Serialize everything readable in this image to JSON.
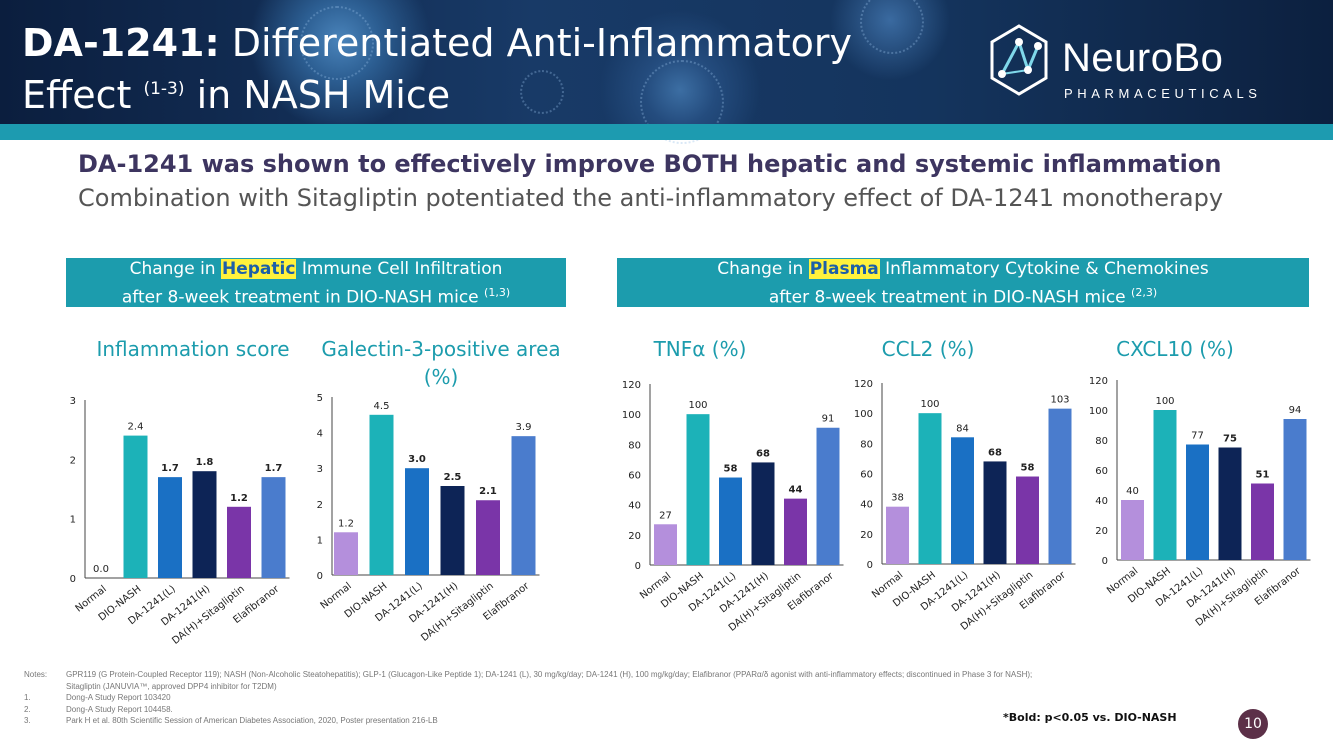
{
  "header": {
    "title_bold": "DA-1241:",
    "title_line1": " Differentiated Anti-Inflammatory",
    "title_line2a": "Effect ",
    "title_sup": "(1-3)",
    "title_line2b": " in NASH Mice",
    "logo_name": "NeuroBo",
    "logo_sub": "PHARMACEUTICALS",
    "logo_icon": "neural-network-icon"
  },
  "headline": "DA-1241 was shown to effectively improve BOTH hepatic and systemic inflammation",
  "subline": "Combination with Sitagliptin potentiated the anti-inflammatory effect of DA-1241 monotherapy",
  "hepatic_box": {
    "pre": "Change in ",
    "highlight": "Hepatic",
    "post": " Immune Cell Infiltration",
    "line2": "after 8-week treatment in DIO-NASH mice ",
    "sup": "(1,3)"
  },
  "plasma_box": {
    "pre": "Change in ",
    "highlight": "Plasma",
    "post": " Inflammatory Cytokine & Chemokines",
    "line2": "after 8-week treatment in DIO-NASH mice ",
    "sup": "(2,3)"
  },
  "colors": {
    "normal": "#b48fdc",
    "dio_nash": "#1cb2b8",
    "da1241_l": "#1a70c4",
    "da1241_h": "#0d2456",
    "combo": "#7a35a8",
    "elafibranor": "#4a7ccd"
  },
  "chart_data": [
    {
      "type": "bar",
      "title": "Inflammation score",
      "categories": [
        "Normal",
        "DIO-NASH",
        "DA-1241(L)",
        "DA-1241(H)",
        "DA(H)+Sitagliptin",
        "Elafibranor"
      ],
      "values": [
        0.0,
        2.4,
        1.7,
        1.8,
        1.2,
        1.7
      ],
      "labels": [
        "0.0",
        "2.4",
        "1.7",
        "1.8",
        "1.2",
        "1.7"
      ],
      "bold": [
        false,
        false,
        true,
        true,
        true,
        true
      ],
      "ylim": [
        0,
        3
      ],
      "yticks": [
        "0",
        "1",
        "2",
        "3"
      ],
      "xlabel": "",
      "ylabel": ""
    },
    {
      "type": "bar",
      "title": "Galectin-3-positive area (%)",
      "categories": [
        "Normal",
        "DIO-NASH",
        "DA-1241(L)",
        "DA-1241(H)",
        "DA(H)+Sitagliptin",
        "Elafibranor"
      ],
      "values": [
        1.2,
        4.5,
        3.0,
        2.5,
        2.1,
        3.9
      ],
      "labels": [
        "1.2",
        "4.5",
        "3.0",
        "2.5",
        "2.1",
        "3.9"
      ],
      "bold": [
        false,
        false,
        true,
        true,
        true,
        false
      ],
      "ylim": [
        0,
        5
      ],
      "yticks": [
        "0",
        "1",
        "2",
        "3",
        "4",
        "5"
      ],
      "xlabel": "",
      "ylabel": ""
    },
    {
      "type": "bar",
      "title": "TNFα (%)",
      "categories": [
        "Normal",
        "DIO-NASH",
        "DA-1241(L)",
        "DA-1241(H)",
        "DA(H)+Sitagliptin",
        "Elafibranor"
      ],
      "values": [
        27,
        100,
        58,
        68,
        44,
        91
      ],
      "labels": [
        "27",
        "100",
        "58",
        "68",
        "44",
        "91"
      ],
      "bold": [
        false,
        false,
        true,
        true,
        true,
        false
      ],
      "ylim": [
        0,
        120
      ],
      "yticks": [
        "0",
        "20",
        "40",
        "60",
        "80",
        "100",
        "120"
      ],
      "xlabel": "",
      "ylabel": ""
    },
    {
      "type": "bar",
      "title": "CCL2 (%)",
      "categories": [
        "Normal",
        "DIO-NASH",
        "DA-1241(L)",
        "DA-1241(H)",
        "DA(H)+Sitagliptin",
        "Elafibranor"
      ],
      "values": [
        38,
        100,
        84,
        68,
        58,
        103
      ],
      "labels": [
        "38",
        "100",
        "84",
        "68",
        "58",
        "103"
      ],
      "bold": [
        false,
        false,
        false,
        true,
        true,
        false
      ],
      "ylim": [
        0,
        120
      ],
      "yticks": [
        "0",
        "20",
        "40",
        "60",
        "80",
        "100",
        "120"
      ],
      "xlabel": "",
      "ylabel": ""
    },
    {
      "type": "bar",
      "title": "CXCL10 (%)",
      "categories": [
        "Normal",
        "DIO-NASH",
        "DA-1241(L)",
        "DA-1241(H)",
        "DA(H)+Sitagliptin",
        "Elafibranor"
      ],
      "values": [
        40,
        100,
        77,
        75,
        51,
        94
      ],
      "labels": [
        "40",
        "100",
        "77",
        "75",
        "51",
        "94"
      ],
      "bold": [
        false,
        false,
        false,
        true,
        true,
        false
      ],
      "ylim": [
        0,
        120
      ],
      "yticks": [
        "0",
        "20",
        "40",
        "60",
        "80",
        "100",
        "120"
      ],
      "xlabel": "",
      "ylabel": ""
    }
  ],
  "notes": {
    "label": "Notes:",
    "line1": "GPR119 (G Protein-Coupled Receptor 119); NASH (Non-Alcoholic Steatohepatitis); GLP-1 (Glucagon-Like Peptide 1); DA-1241 (L), 30 mg/kg/day; DA-1241 (H), 100 mg/kg/day; Elafibranor (PPARα/δ agonist with anti-inflammatory effects; discontinued in Phase 3 for NASH);",
    "line2": "Sitagliptin (JANUVIA™, approved DPP4 inhibitor for T2DM)",
    "refs": [
      {
        "num": "1.",
        "text": "Dong-A Study Report 103420"
      },
      {
        "num": "2.",
        "text": "Dong-A Study Report 104458."
      },
      {
        "num": "3.",
        "text": "Park H et al. 80th Scientific Session of American Diabetes Association, 2020, Poster presentation 216-LB"
      }
    ]
  },
  "bold_note": "*Bold: p<0.05 vs. DIO-NASH",
  "page_number": "10"
}
